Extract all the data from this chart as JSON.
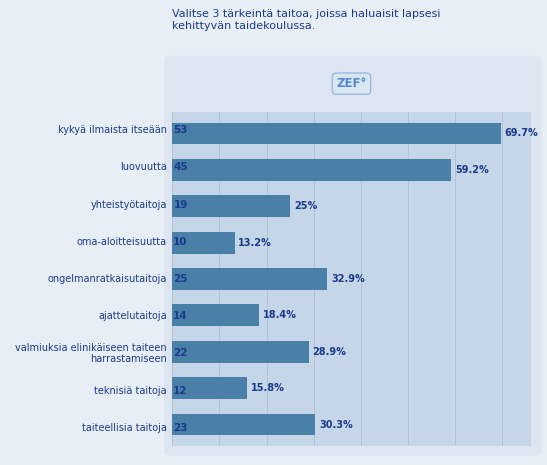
{
  "title": "Valitse 3 tärkeintä taitoa, joissa haluaisit lapsesi\nkehittyvän taidekoulussa.",
  "categories": [
    "kykyä ilmaista itseään",
    "luovuutta",
    "yhteistyötaitoja",
    "oma-aloitteisuutta",
    "ongelmanratkaisutaitoja",
    "ajattelutaitoja",
    "valmiuksia elinikäiseen taiteen\nharrastamiseen",
    "teknisiä taitoja",
    "taiteellisia taitoja"
  ],
  "counts": [
    53,
    45,
    19,
    10,
    25,
    14,
    22,
    12,
    23
  ],
  "percentages": [
    69.7,
    59.2,
    25.0,
    13.2,
    32.9,
    18.4,
    28.9,
    15.8,
    30.3
  ],
  "pct_labels": [
    "69.7%",
    "59.2%",
    "25%",
    "13.2%",
    "32.9%",
    "18.4%",
    "28.9%",
    "15.8%",
    "30.3%"
  ],
  "bar_color": "#4a7fa8",
  "bg_outer": "#dce5f0",
  "bg_outer2": "#e8eef6",
  "bg_inner": "#c5d6e8",
  "grid_color": "#afc4d8",
  "title_color": "#1a3a8c",
  "label_color": "#1a3a8c",
  "count_color": "#1a3a8c",
  "zef_label": "ZEF°",
  "max_pct": 76.0
}
